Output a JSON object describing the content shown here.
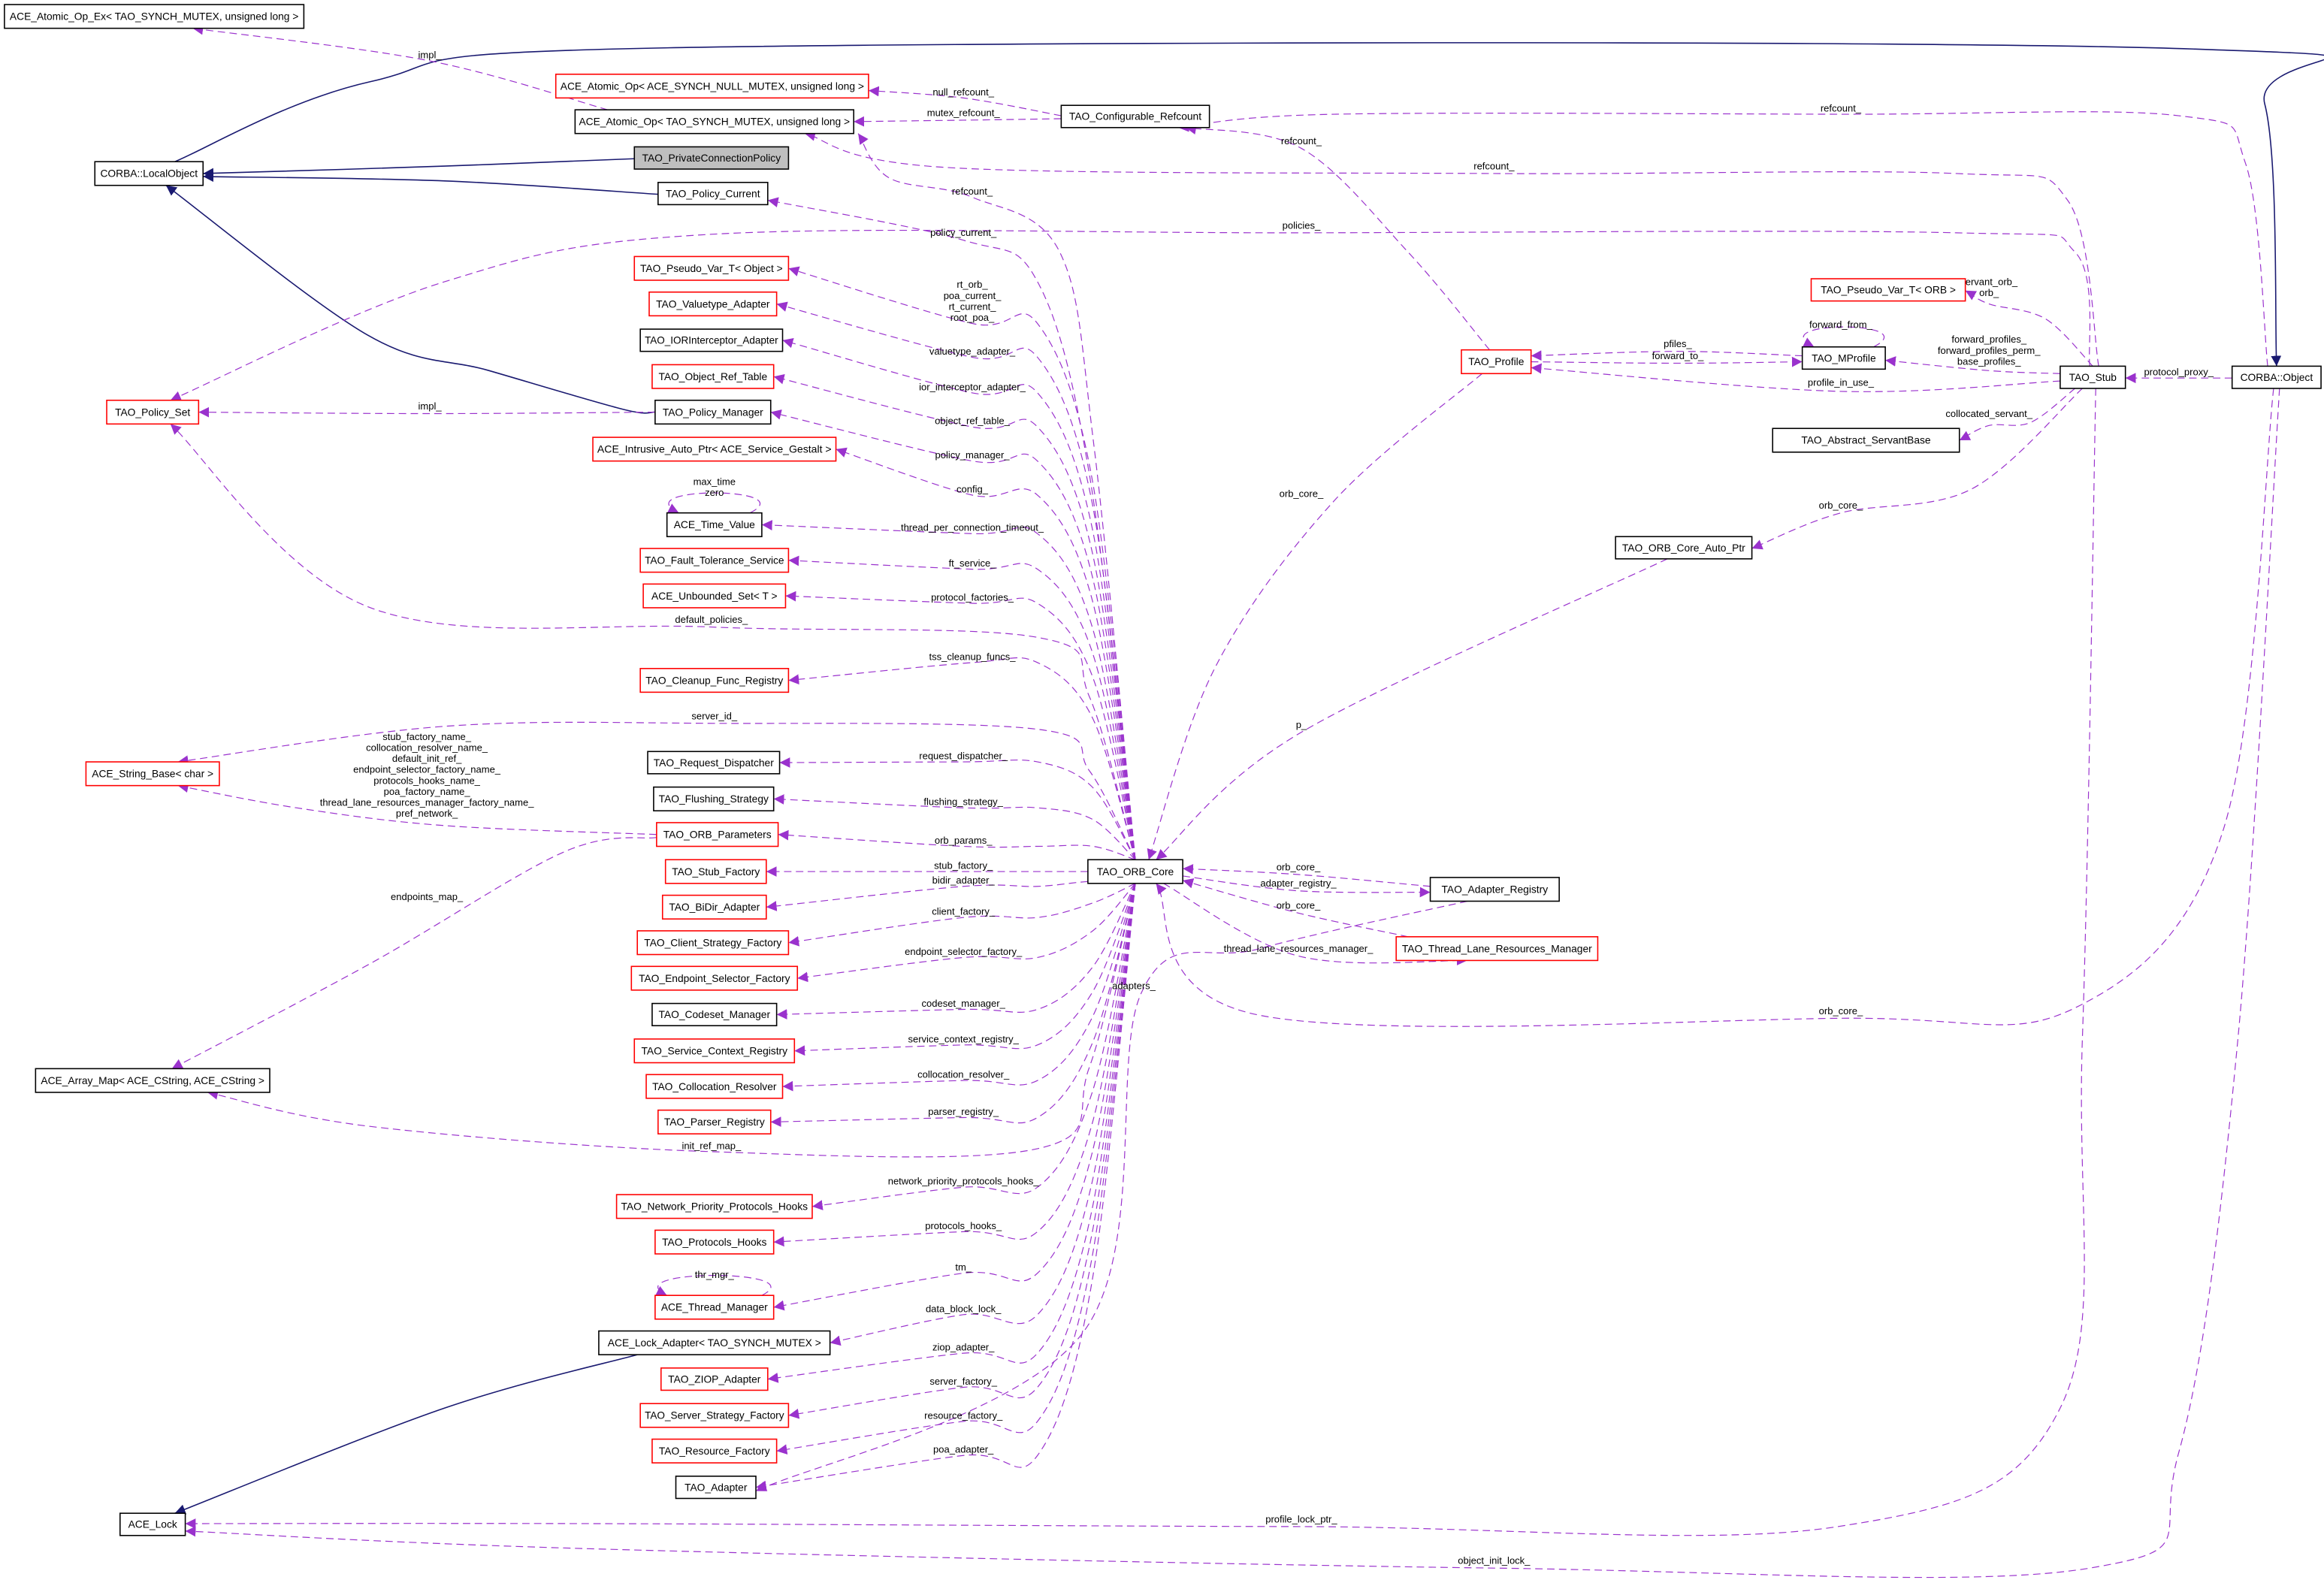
{
  "colors": {
    "usage_edge": "#9a32cd",
    "inheritance_edge": "#191970",
    "node_border_default": "#000000",
    "node_border_incomplete": "#ff0000",
    "highlight_fill": "#bfbfbf",
    "background": "#ffffff"
  },
  "nodes": [
    {
      "label": "ACE_Atomic_Op_Ex< TAO_SYNCH_MUTEX, unsigned long >",
      "border": "black"
    },
    {
      "label": "ACE_Atomic_Op< ACE_SYNCH_NULL_MUTEX, unsigned long >",
      "border": "red"
    },
    {
      "label": "ACE_Atomic_Op< TAO_SYNCH_MUTEX, unsigned long >",
      "border": "black"
    },
    {
      "label": "TAO_PrivateConnectionPolicy",
      "border": "black",
      "highlighted": true
    },
    {
      "label": "CORBA::LocalObject",
      "border": "black"
    },
    {
      "label": "TAO_Policy_Current",
      "border": "black"
    },
    {
      "label": "TAO_Configurable_Refcount",
      "border": "black"
    },
    {
      "label": "TAO_Pseudo_Var_T< Object >",
      "border": "red"
    },
    {
      "label": "TAO_Valuetype_Adapter",
      "border": "red"
    },
    {
      "label": "TAO_IORInterceptor_Adapter",
      "border": "black"
    },
    {
      "label": "TAO_Object_Ref_Table",
      "border": "red"
    },
    {
      "label": "TAO_Policy_Manager",
      "border": "black"
    },
    {
      "label": "TAO_Policy_Set",
      "border": "red"
    },
    {
      "label": "ACE_Intrusive_Auto_Ptr< ACE_Service_Gestalt >",
      "border": "red"
    },
    {
      "label": "ACE_Time_Value",
      "border": "black"
    },
    {
      "label": "TAO_Fault_Tolerance_Service",
      "border": "red"
    },
    {
      "label": "ACE_Unbounded_Set< T >",
      "border": "red"
    },
    {
      "label": "TAO_Cleanup_Func_Registry",
      "border": "red"
    },
    {
      "label": "ACE_String_Base< char >",
      "border": "red"
    },
    {
      "label": "TAO_Request_Dispatcher",
      "border": "black"
    },
    {
      "label": "TAO_Flushing_Strategy",
      "border": "black"
    },
    {
      "label": "TAO_ORB_Parameters",
      "border": "red"
    },
    {
      "label": "TAO_Stub_Factory",
      "border": "red"
    },
    {
      "label": "TAO_BiDir_Adapter",
      "border": "red"
    },
    {
      "label": "TAO_Client_Strategy_Factory",
      "border": "red"
    },
    {
      "label": "TAO_Endpoint_Selector_Factory",
      "border": "red"
    },
    {
      "label": "TAO_Codeset_Manager",
      "border": "black"
    },
    {
      "label": "TAO_Service_Context_Registry",
      "border": "red"
    },
    {
      "label": "TAO_Collocation_Resolver",
      "border": "red"
    },
    {
      "label": "TAO_Parser_Registry",
      "border": "red"
    },
    {
      "label": "ACE_Array_Map< ACE_CString, ACE_CString >",
      "border": "black"
    },
    {
      "label": "TAO_Network_Priority_Protocols_Hooks",
      "border": "red"
    },
    {
      "label": "TAO_Protocols_Hooks",
      "border": "red"
    },
    {
      "label": "ACE_Thread_Manager",
      "border": "red"
    },
    {
      "label": "ACE_Lock_Adapter< TAO_SYNCH_MUTEX >",
      "border": "black"
    },
    {
      "label": "TAO_ZIOP_Adapter",
      "border": "red"
    },
    {
      "label": "TAO_Server_Strategy_Factory",
      "border": "red"
    },
    {
      "label": "TAO_Resource_Factory",
      "border": "red"
    },
    {
      "label": "TAO_Adapter",
      "border": "black"
    },
    {
      "label": "ACE_Lock",
      "border": "black"
    },
    {
      "label": "TAO_ORB_Core",
      "border": "black"
    },
    {
      "label": "TAO_Adapter_Registry",
      "border": "black"
    },
    {
      "label": "TAO_Thread_Lane_Resources_Manager",
      "border": "red"
    },
    {
      "label": "TAO_Profile",
      "border": "red"
    },
    {
      "label": "TAO_MProfile",
      "border": "black"
    },
    {
      "label": "TAO_Pseudo_Var_T< ORB >",
      "border": "red"
    },
    {
      "label": "TAO_Abstract_ServantBase",
      "border": "black"
    },
    {
      "label": "TAO_ORB_Core_Auto_Ptr",
      "border": "black"
    },
    {
      "label": "TAO_Stub",
      "border": "black"
    },
    {
      "label": "CORBA::Object",
      "border": "black"
    }
  ],
  "edges": [
    {
      "from": "TAO_PrivateConnectionPolicy",
      "to": "CORBA::LocalObject",
      "kind": "inheritance",
      "labels": []
    },
    {
      "from": "TAO_Policy_Current",
      "to": "CORBA::LocalObject",
      "kind": "inheritance",
      "labels": []
    },
    {
      "from": "TAO_Policy_Manager",
      "to": "CORBA::LocalObject",
      "kind": "inheritance",
      "labels": []
    },
    {
      "from": "CORBA::LocalObject",
      "to": "CORBA::Object",
      "kind": "inheritance",
      "labels": []
    },
    {
      "from": "ACE_Lock_Adapter< TAO_SYNCH_MUTEX >",
      "to": "ACE_Lock",
      "kind": "inheritance",
      "labels": []
    },
    {
      "from": "ACE_Atomic_Op< TAO_SYNCH_MUTEX, unsigned long >",
      "to": "ACE_Atomic_Op_Ex< TAO_SYNCH_MUTEX, unsigned long >",
      "kind": "usage",
      "labels": [
        "impl_"
      ]
    },
    {
      "from": "TAO_Configurable_Refcount",
      "to": "ACE_Atomic_Op< ACE_SYNCH_NULL_MUTEX, unsigned long >",
      "kind": "usage",
      "labels": [
        "null_refcount_"
      ]
    },
    {
      "from": "TAO_Configurable_Refcount",
      "to": "ACE_Atomic_Op< TAO_SYNCH_MUTEX, unsigned long >",
      "kind": "usage",
      "labels": [
        "mutex_refcount_"
      ]
    },
    {
      "from": "CORBA::Object",
      "to": "TAO_Configurable_Refcount",
      "kind": "usage",
      "labels": [
        "refcount_"
      ]
    },
    {
      "from": "TAO_Stub",
      "to": "ACE_Atomic_Op< TAO_SYNCH_MUTEX, unsigned long >",
      "kind": "usage",
      "labels": [
        "refcount_"
      ]
    },
    {
      "from": "TAO_ORB_Core",
      "to": "ACE_Atomic_Op< TAO_SYNCH_MUTEX, unsigned long >",
      "kind": "usage",
      "labels": [
        "refcount_"
      ]
    },
    {
      "from": "TAO_ORB_Core",
      "to": "TAO_Policy_Current",
      "kind": "usage",
      "labels": [
        "policy_current_"
      ]
    },
    {
      "from": "TAO_Stub",
      "to": "TAO_Policy_Set",
      "kind": "usage",
      "labels": [
        "policies_"
      ]
    },
    {
      "from": "TAO_ORB_Core",
      "to": "TAO_Pseudo_Var_T< Object >",
      "kind": "usage",
      "labels": [
        "rt_orb_",
        "poa_current_",
        "rt_current_",
        "root_poa_"
      ]
    },
    {
      "from": "TAO_ORB_Core",
      "to": "TAO_Valuetype_Adapter",
      "kind": "usage",
      "labels": [
        "valuetype_adapter_"
      ]
    },
    {
      "from": "TAO_ORB_Core",
      "to": "TAO_IORInterceptor_Adapter",
      "kind": "usage",
      "labels": [
        "ior_interceptor_adapter_"
      ]
    },
    {
      "from": "TAO_ORB_Core",
      "to": "TAO_Object_Ref_Table",
      "kind": "usage",
      "labels": [
        "object_ref_table_"
      ]
    },
    {
      "from": "TAO_ORB_Core",
      "to": "TAO_Policy_Manager",
      "kind": "usage",
      "labels": [
        "policy_manager_"
      ]
    },
    {
      "from": "TAO_Policy_Manager",
      "to": "TAO_Policy_Set",
      "kind": "usage",
      "labels": [
        "impl_"
      ]
    },
    {
      "from": "TAO_ORB_Core",
      "to": "ACE_Intrusive_Auto_Ptr< ACE_Service_Gestalt >",
      "kind": "usage",
      "labels": [
        "config_"
      ]
    },
    {
      "from": "ACE_Time_Value",
      "to": "ACE_Time_Value",
      "kind": "usage",
      "labels": [
        "max_time",
        "zero"
      ]
    },
    {
      "from": "TAO_ORB_Core",
      "to": "ACE_Time_Value",
      "kind": "usage",
      "labels": [
        "thread_per_connection_timeout_"
      ]
    },
    {
      "from": "TAO_ORB_Core",
      "to": "TAO_Fault_Tolerance_Service",
      "kind": "usage",
      "labels": [
        "ft_service_"
      ]
    },
    {
      "from": "TAO_ORB_Core",
      "to": "ACE_Unbounded_Set< T >",
      "kind": "usage",
      "labels": [
        "protocol_factories_"
      ]
    },
    {
      "from": "TAO_ORB_Core",
      "to": "TAO_Policy_Set",
      "kind": "usage",
      "labels": [
        "default_policies_"
      ]
    },
    {
      "from": "TAO_ORB_Core",
      "to": "TAO_Cleanup_Func_Registry",
      "kind": "usage",
      "labels": [
        "tss_cleanup_funcs_"
      ]
    },
    {
      "from": "TAO_ORB_Core",
      "to": "ACE_String_Base< char >",
      "kind": "usage",
      "labels": [
        "server_id_"
      ]
    },
    {
      "from": "TAO_ORB_Core",
      "to": "TAO_Request_Dispatcher",
      "kind": "usage",
      "labels": [
        "request_dispatcher_"
      ]
    },
    {
      "from": "TAO_ORB_Core",
      "to": "TAO_Flushing_Strategy",
      "kind": "usage",
      "labels": [
        "flushing_strategy_"
      ]
    },
    {
      "from": "TAO_ORB_Parameters",
      "to": "ACE_String_Base< char >",
      "kind": "usage",
      "labels": [
        "stub_factory_name_",
        "collocation_resolver_name_",
        "default_init_ref_",
        "endpoint_selector_factory_name_",
        "protocols_hooks_name_",
        "poa_factory_name_",
        "thread_lane_resources_manager_factory_name_",
        "pref_network_"
      ]
    },
    {
      "from": "TAO_ORB_Parameters",
      "to": "ACE_Array_Map< ACE_CString, ACE_CString >",
      "kind": "usage",
      "labels": [
        "endpoints_map_"
      ]
    },
    {
      "from": "TAO_ORB_Core",
      "to": "TAO_ORB_Parameters",
      "kind": "usage",
      "labels": [
        "orb_params_"
      ]
    },
    {
      "from": "TAO_ORB_Core",
      "to": "TAO_Stub_Factory",
      "kind": "usage",
      "labels": [
        "stub_factory_"
      ]
    },
    {
      "from": "TAO_ORB_Core",
      "to": "TAO_BiDir_Adapter",
      "kind": "usage",
      "labels": [
        "bidir_adapter_"
      ]
    },
    {
      "from": "TAO_ORB_Core",
      "to": "TAO_Client_Strategy_Factory",
      "kind": "usage",
      "labels": [
        "client_factory_"
      ]
    },
    {
      "from": "TAO_ORB_Core",
      "to": "TAO_Endpoint_Selector_Factory",
      "kind": "usage",
      "labels": [
        "endpoint_selector_factory_"
      ]
    },
    {
      "from": "TAO_ORB_Core",
      "to": "TAO_Codeset_Manager",
      "kind": "usage",
      "labels": [
        "codeset_manager_"
      ]
    },
    {
      "from": "TAO_ORB_Core",
      "to": "TAO_Service_Context_Registry",
      "kind": "usage",
      "labels": [
        "service_context_registry_"
      ]
    },
    {
      "from": "TAO_ORB_Core",
      "to": "TAO_Collocation_Resolver",
      "kind": "usage",
      "labels": [
        "collocation_resolver_"
      ]
    },
    {
      "from": "TAO_ORB_Core",
      "to": "TAO_Parser_Registry",
      "kind": "usage",
      "labels": [
        "parser_registry_"
      ]
    },
    {
      "from": "TAO_ORB_Core",
      "to": "ACE_Array_Map< ACE_CString, ACE_CString >",
      "kind": "usage",
      "labels": [
        "init_ref_map_"
      ]
    },
    {
      "from": "TAO_ORB_Core",
      "to": "TAO_Network_Priority_Protocols_Hooks",
      "kind": "usage",
      "labels": [
        "network_priority_protocols_hooks_"
      ]
    },
    {
      "from": "TAO_ORB_Core",
      "to": "TAO_Protocols_Hooks",
      "kind": "usage",
      "labels": [
        "protocols_hooks_"
      ]
    },
    {
      "from": "ACE_Thread_Manager",
      "to": "ACE_Thread_Manager",
      "kind": "usage",
      "labels": [
        "thr_mgr_"
      ]
    },
    {
      "from": "TAO_ORB_Core",
      "to": "ACE_Thread_Manager",
      "kind": "usage",
      "labels": [
        "tm_"
      ]
    },
    {
      "from": "TAO_ORB_Core",
      "to": "ACE_Lock_Adapter< TAO_SYNCH_MUTEX >",
      "kind": "usage",
      "labels": [
        "data_block_lock_"
      ]
    },
    {
      "from": "TAO_ORB_Core",
      "to": "TAO_ZIOP_Adapter",
      "kind": "usage",
      "labels": [
        "ziop_adapter_"
      ]
    },
    {
      "from": "TAO_ORB_Core",
      "to": "TAO_Server_Strategy_Factory",
      "kind": "usage",
      "labels": [
        "server_factory_"
      ]
    },
    {
      "from": "TAO_ORB_Core",
      "to": "TAO_Resource_Factory",
      "kind": "usage",
      "labels": [
        "resource_factory_"
      ]
    },
    {
      "from": "TAO_ORB_Core",
      "to": "TAO_Adapter",
      "kind": "usage",
      "labels": [
        "poa_adapter_"
      ]
    },
    {
      "from": "TAO_Stub",
      "to": "ACE_Lock",
      "kind": "usage",
      "labels": [
        "profile_lock_ptr_"
      ]
    },
    {
      "from": "CORBA::Object",
      "to": "ACE_Lock",
      "kind": "usage",
      "labels": [
        "object_init_lock_"
      ]
    },
    {
      "from": "CORBA::Object",
      "to": "TAO_ORB_Core",
      "kind": "usage",
      "labels": [
        "orb_core_"
      ]
    },
    {
      "from": "TAO_Adapter_Registry",
      "to": "TAO_ORB_Core",
      "kind": "usage",
      "labels": [
        "orb_core_"
      ]
    },
    {
      "from": "TAO_ORB_Core",
      "to": "TAO_Adapter_Registry",
      "kind": "usage",
      "labels": [
        "adapter_registry_"
      ]
    },
    {
      "from": "TAO_Thread_Lane_Resources_Manager",
      "to": "TAO_ORB_Core",
      "kind": "usage",
      "labels": [
        "orb_core_"
      ]
    },
    {
      "from": "TAO_ORB_Core",
      "to": "TAO_Thread_Lane_Resources_Manager",
      "kind": "usage",
      "labels": [
        "thread_lane_resources_manager_"
      ]
    },
    {
      "from": "TAO_Adapter_Registry",
      "to": "TAO_Adapter",
      "kind": "usage",
      "labels": [
        "adapters_"
      ]
    },
    {
      "from": "TAO_Profile",
      "to": "TAO_ORB_Core",
      "kind": "usage",
      "labels": [
        "orb_core_"
      ]
    },
    {
      "from": "TAO_Profile",
      "to": "TAO_Configurable_Refcount",
      "kind": "usage",
      "labels": [
        "refcount_"
      ]
    },
    {
      "from": "TAO_ORB_Core_Auto_Ptr",
      "to": "TAO_ORB_Core",
      "kind": "usage",
      "labels": [
        "p_"
      ]
    },
    {
      "from": "TAO_MProfile",
      "to": "TAO_Profile",
      "kind": "usage",
      "labels": [
        "pfiles_"
      ]
    },
    {
      "from": "TAO_Profile",
      "to": "TAO_MProfile",
      "kind": "usage",
      "labels": [
        "forward_to_"
      ]
    },
    {
      "from": "TAO_MProfile",
      "to": "TAO_MProfile",
      "kind": "usage",
      "labels": [
        "forward_from_"
      ]
    },
    {
      "from": "TAO_Stub",
      "to": "TAO_Pseudo_Var_T< ORB >",
      "kind": "usage",
      "labels": [
        "servant_orb_",
        "orb_"
      ]
    },
    {
      "from": "TAO_Stub",
      "to": "TAO_MProfile",
      "kind": "usage",
      "labels": [
        "forward_profiles_",
        "forward_profiles_perm_",
        "base_profiles_"
      ]
    },
    {
      "from": "TAO_Stub",
      "to": "TAO_Profile",
      "kind": "usage",
      "labels": [
        "profile_in_use_"
      ]
    },
    {
      "from": "TAO_Stub",
      "to": "TAO_Abstract_ServantBase",
      "kind": "usage",
      "labels": [
        "collocated_servant_"
      ]
    },
    {
      "from": "TAO_Stub",
      "to": "TAO_ORB_Core_Auto_Ptr",
      "kind": "usage",
      "labels": [
        "orb_core_"
      ]
    },
    {
      "from": "CORBA::Object",
      "to": "TAO_Stub",
      "kind": "usage",
      "labels": [
        "protocol_proxy_"
      ]
    }
  ]
}
